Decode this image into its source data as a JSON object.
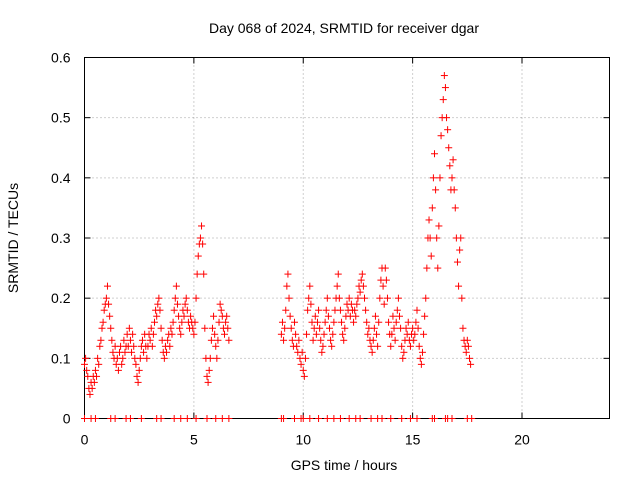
{
  "chart_data": {
    "type": "scatter",
    "title": "Day 068 of 2024, SRMTID for receiver dgar",
    "xlabel": "GPS time / hours",
    "ylabel": "SRMTID / TECUs",
    "xlim": [
      0,
      24
    ],
    "ylim": [
      0,
      0.6
    ],
    "x_ticks": [
      0,
      5,
      10,
      15,
      20
    ],
    "x_tick_labels": [
      "0",
      "5",
      "10",
      "15",
      "20"
    ],
    "y_ticks": [
      0,
      0.1,
      0.2,
      0.3,
      0.4,
      0.5,
      0.6
    ],
    "y_tick_labels": [
      "0",
      "0.1",
      "0.2",
      "0.3",
      "0.4",
      "0.5",
      "0.6"
    ],
    "grid": true,
    "marker": "plus",
    "marker_color": "#ff0000",
    "series": [
      {
        "name": "SRMTID",
        "points": [
          [
            0.0,
            0.09
          ],
          [
            0.05,
            0.1
          ],
          [
            0.1,
            0.08
          ],
          [
            0.15,
            0.07
          ],
          [
            0.2,
            0.05
          ],
          [
            0.25,
            0.04
          ],
          [
            0.3,
            0.06
          ],
          [
            0.35,
            0.05
          ],
          [
            0.4,
            0.07
          ],
          [
            0.45,
            0.06
          ],
          [
            0.5,
            0.08
          ],
          [
            0.55,
            0.07
          ],
          [
            0.6,
            0.1
          ],
          [
            0.65,
            0.09
          ],
          [
            0.7,
            0.12
          ],
          [
            0.75,
            0.13
          ],
          [
            0.8,
            0.15
          ],
          [
            0.85,
            0.16
          ],
          [
            0.9,
            0.18
          ],
          [
            0.95,
            0.19
          ],
          [
            1.0,
            0.2
          ],
          [
            1.05,
            0.22
          ],
          [
            1.1,
            0.19
          ],
          [
            1.15,
            0.17
          ],
          [
            1.2,
            0.15
          ],
          [
            1.25,
            0.13
          ],
          [
            1.3,
            0.11
          ],
          [
            1.35,
            0.1
          ],
          [
            1.4,
            0.12
          ],
          [
            1.45,
            0.09
          ],
          [
            1.5,
            0.1
          ],
          [
            1.55,
            0.08
          ],
          [
            1.6,
            0.11
          ],
          [
            1.65,
            0.12
          ],
          [
            1.7,
            0.09
          ],
          [
            1.75,
            0.1
          ],
          [
            1.8,
            0.13
          ],
          [
            1.85,
            0.11
          ],
          [
            1.9,
            0.12
          ],
          [
            1.95,
            0.14
          ],
          [
            2.0,
            0.12
          ],
          [
            2.05,
            0.15
          ],
          [
            2.1,
            0.13
          ],
          [
            2.15,
            0.11
          ],
          [
            2.2,
            0.14
          ],
          [
            2.25,
            0.12
          ],
          [
            2.3,
            0.1
          ],
          [
            2.35,
            0.09
          ],
          [
            2.4,
            0.07
          ],
          [
            2.45,
            0.06
          ],
          [
            2.5,
            0.08
          ],
          [
            2.55,
            0.1
          ],
          [
            2.6,
            0.12
          ],
          [
            2.65,
            0.13
          ],
          [
            2.7,
            0.11
          ],
          [
            2.75,
            0.14
          ],
          [
            2.8,
            0.12
          ],
          [
            2.85,
            0.1
          ],
          [
            2.9,
            0.12
          ],
          [
            2.95,
            0.14
          ],
          [
            3.0,
            0.13
          ],
          [
            3.05,
            0.15
          ],
          [
            3.1,
            0.12
          ],
          [
            3.15,
            0.14
          ],
          [
            3.2,
            0.16
          ],
          [
            3.25,
            0.18
          ],
          [
            3.3,
            0.17
          ],
          [
            3.35,
            0.19
          ],
          [
            3.4,
            0.2
          ],
          [
            3.45,
            0.18
          ],
          [
            3.5,
            0.15
          ],
          [
            3.55,
            0.13
          ],
          [
            3.6,
            0.11
          ],
          [
            3.65,
            0.1
          ],
          [
            3.7,
            0.12
          ],
          [
            3.75,
            0.11
          ],
          [
            3.8,
            0.13
          ],
          [
            3.85,
            0.14
          ],
          [
            3.9,
            0.12
          ],
          [
            3.95,
            0.15
          ],
          [
            4.0,
            0.14
          ],
          [
            4.05,
            0.16
          ],
          [
            4.1,
            0.18
          ],
          [
            4.15,
            0.2
          ],
          [
            4.2,
            0.22
          ],
          [
            4.25,
            0.19
          ],
          [
            4.3,
            0.17
          ],
          [
            4.35,
            0.15
          ],
          [
            4.4,
            0.14
          ],
          [
            4.45,
            0.16
          ],
          [
            4.5,
            0.18
          ],
          [
            4.55,
            0.17
          ],
          [
            4.6,
            0.19
          ],
          [
            4.65,
            0.2
          ],
          [
            4.7,
            0.18
          ],
          [
            4.75,
            0.16
          ],
          [
            4.8,
            0.15
          ],
          [
            4.85,
            0.17
          ],
          [
            4.9,
            0.16
          ],
          [
            4.95,
            0.15
          ],
          [
            5.0,
            0.14
          ],
          [
            5.05,
            0.16
          ],
          [
            5.1,
            0.2
          ],
          [
            5.15,
            0.24
          ],
          [
            5.2,
            0.27
          ],
          [
            5.25,
            0.29
          ],
          [
            5.3,
            0.3
          ],
          [
            5.35,
            0.32
          ],
          [
            5.4,
            0.29
          ],
          [
            5.45,
            0.24
          ],
          [
            5.5,
            0.15
          ],
          [
            5.55,
            0.1
          ],
          [
            5.6,
            0.07
          ],
          [
            5.65,
            0.06
          ],
          [
            5.7,
            0.08
          ],
          [
            5.75,
            0.1
          ],
          [
            5.8,
            0.13
          ],
          [
            5.85,
            0.15
          ],
          [
            5.9,
            0.17
          ],
          [
            5.95,
            0.14
          ],
          [
            6.0,
            0.12
          ],
          [
            6.05,
            0.1
          ],
          [
            6.1,
            0.13
          ],
          [
            6.15,
            0.16
          ],
          [
            6.2,
            0.19
          ],
          [
            6.25,
            0.18
          ],
          [
            6.3,
            0.17
          ],
          [
            6.35,
            0.15
          ],
          [
            6.4,
            0.14
          ],
          [
            6.45,
            0.16
          ],
          [
            6.5,
            0.17
          ],
          [
            6.55,
            0.15
          ],
          [
            6.6,
            0.13
          ],
          [
            9.0,
            0.14
          ],
          [
            9.05,
            0.16
          ],
          [
            9.1,
            0.13
          ],
          [
            9.15,
            0.15
          ],
          [
            9.2,
            0.18
          ],
          [
            9.25,
            0.22
          ],
          [
            9.3,
            0.24
          ],
          [
            9.35,
            0.2
          ],
          [
            9.4,
            0.17
          ],
          [
            9.45,
            0.15
          ],
          [
            9.5,
            0.13
          ],
          [
            9.55,
            0.12
          ],
          [
            9.6,
            0.16
          ],
          [
            9.65,
            0.14
          ],
          [
            9.7,
            0.12
          ],
          [
            9.75,
            0.11
          ],
          [
            9.8,
            0.13
          ],
          [
            9.85,
            0.1
          ],
          [
            9.9,
            0.09
          ],
          [
            9.95,
            0.11
          ],
          [
            10.0,
            0.08
          ],
          [
            10.05,
            0.07
          ],
          [
            10.1,
            0.1
          ],
          [
            10.15,
            0.14
          ],
          [
            10.2,
            0.18
          ],
          [
            10.25,
            0.2
          ],
          [
            10.3,
            0.22
          ],
          [
            10.35,
            0.19
          ],
          [
            10.4,
            0.16
          ],
          [
            10.45,
            0.13
          ],
          [
            10.5,
            0.15
          ],
          [
            10.55,
            0.17
          ],
          [
            10.6,
            0.14
          ],
          [
            10.65,
            0.16
          ],
          [
            10.7,
            0.18
          ],
          [
            10.75,
            0.15
          ],
          [
            10.8,
            0.13
          ],
          [
            10.85,
            0.11
          ],
          [
            10.9,
            0.12
          ],
          [
            10.95,
            0.14
          ],
          [
            11.0,
            0.16
          ],
          [
            11.05,
            0.18
          ],
          [
            11.1,
            0.2
          ],
          [
            11.15,
            0.17
          ],
          [
            11.2,
            0.15
          ],
          [
            11.25,
            0.13
          ],
          [
            11.3,
            0.12
          ],
          [
            11.35,
            0.14
          ],
          [
            11.4,
            0.16
          ],
          [
            11.45,
            0.18
          ],
          [
            11.5,
            0.2
          ],
          [
            11.55,
            0.22
          ],
          [
            11.6,
            0.24
          ],
          [
            11.65,
            0.2
          ],
          [
            11.7,
            0.18
          ],
          [
            11.75,
            0.16
          ],
          [
            11.8,
            0.14
          ],
          [
            11.85,
            0.13
          ],
          [
            11.9,
            0.15
          ],
          [
            11.95,
            0.17
          ],
          [
            12.0,
            0.19
          ],
          [
            12.05,
            0.18
          ],
          [
            12.1,
            0.2
          ],
          [
            12.15,
            0.17
          ],
          [
            12.2,
            0.19
          ],
          [
            12.25,
            0.18
          ],
          [
            12.3,
            0.16
          ],
          [
            12.35,
            0.18
          ],
          [
            12.4,
            0.17
          ],
          [
            12.45,
            0.19
          ],
          [
            12.5,
            0.2
          ],
          [
            12.55,
            0.22
          ],
          [
            12.6,
            0.21
          ],
          [
            12.65,
            0.23
          ],
          [
            12.7,
            0.24
          ],
          [
            12.75,
            0.22
          ],
          [
            12.8,
            0.2
          ],
          [
            12.85,
            0.18
          ],
          [
            12.9,
            0.16
          ],
          [
            12.95,
            0.14
          ],
          [
            13.0,
            0.15
          ],
          [
            13.05,
            0.13
          ],
          [
            13.1,
            0.12
          ],
          [
            13.15,
            0.11
          ],
          [
            13.2,
            0.13
          ],
          [
            13.25,
            0.15
          ],
          [
            13.3,
            0.17
          ],
          [
            13.35,
            0.14
          ],
          [
            13.4,
            0.12
          ],
          [
            13.45,
            0.16
          ],
          [
            13.5,
            0.2
          ],
          [
            13.55,
            0.23
          ],
          [
            13.6,
            0.25
          ],
          [
            13.65,
            0.22
          ],
          [
            13.7,
            0.19
          ],
          [
            13.75,
            0.25
          ],
          [
            13.8,
            0.23
          ],
          [
            13.85,
            0.2
          ],
          [
            13.9,
            0.16
          ],
          [
            13.95,
            0.14
          ],
          [
            14.0,
            0.12
          ],
          [
            14.05,
            0.14
          ],
          [
            14.1,
            0.17
          ],
          [
            14.15,
            0.15
          ],
          [
            14.2,
            0.13
          ],
          [
            14.25,
            0.16
          ],
          [
            14.3,
            0.18
          ],
          [
            14.35,
            0.2
          ],
          [
            14.4,
            0.17
          ],
          [
            14.45,
            0.15
          ],
          [
            14.5,
            0.12
          ],
          [
            14.55,
            0.1
          ],
          [
            14.6,
            0.11
          ],
          [
            14.65,
            0.13
          ],
          [
            14.7,
            0.15
          ],
          [
            14.75,
            0.14
          ],
          [
            14.8,
            0.16
          ],
          [
            14.85,
            0.13
          ],
          [
            14.9,
            0.12
          ],
          [
            14.95,
            0.14
          ],
          [
            15.0,
            0.15
          ],
          [
            15.05,
            0.13
          ],
          [
            15.1,
            0.14
          ],
          [
            15.15,
            0.16
          ],
          [
            15.2,
            0.18
          ],
          [
            15.25,
            0.15
          ],
          [
            15.3,
            0.12
          ],
          [
            15.35,
            0.1
          ],
          [
            15.4,
            0.09
          ],
          [
            15.45,
            0.11
          ],
          [
            15.5,
            0.14
          ],
          [
            15.55,
            0.17
          ],
          [
            15.6,
            0.2
          ],
          [
            15.65,
            0.25
          ],
          [
            15.7,
            0.3
          ],
          [
            15.75,
            0.33
          ],
          [
            15.8,
            0.3
          ],
          [
            15.85,
            0.27
          ],
          [
            15.9,
            0.35
          ],
          [
            15.95,
            0.4
          ],
          [
            16.0,
            0.44
          ],
          [
            16.05,
            0.38
          ],
          [
            16.1,
            0.3
          ],
          [
            16.15,
            0.25
          ],
          [
            16.2,
            0.32
          ],
          [
            16.25,
            0.4
          ],
          [
            16.3,
            0.47
          ],
          [
            16.35,
            0.5
          ],
          [
            16.4,
            0.53
          ],
          [
            16.45,
            0.57
          ],
          [
            16.5,
            0.55
          ],
          [
            16.55,
            0.5
          ],
          [
            16.6,
            0.48
          ],
          [
            16.65,
            0.45
          ],
          [
            16.7,
            0.42
          ],
          [
            16.75,
            0.38
          ],
          [
            16.8,
            0.4
          ],
          [
            16.85,
            0.43
          ],
          [
            16.9,
            0.38
          ],
          [
            16.95,
            0.35
          ],
          [
            17.0,
            0.3
          ],
          [
            17.05,
            0.26
          ],
          [
            17.1,
            0.22
          ],
          [
            17.15,
            0.28
          ],
          [
            17.2,
            0.3
          ],
          [
            17.25,
            0.2
          ],
          [
            17.3,
            0.15
          ],
          [
            17.35,
            0.13
          ],
          [
            17.4,
            0.12
          ],
          [
            17.45,
            0.11
          ],
          [
            17.5,
            0.13
          ],
          [
            17.55,
            0.12
          ],
          [
            17.6,
            0.1
          ],
          [
            17.65,
            0.09
          ]
        ]
      }
    ],
    "baseline_points": [
      0.0,
      0.3,
      0.5,
      1.2,
      1.4,
      1.9,
      2.1,
      2.6,
      3.3,
      3.5,
      4.1,
      4.4,
      4.7,
      5.1,
      5.6,
      6.0,
      6.3,
      6.6,
      9.0,
      9.1,
      9.6,
      9.9,
      10.0,
      10.3,
      10.7,
      11.1,
      11.4,
      11.7,
      12.1,
      12.4,
      12.6,
      13.1,
      13.4,
      13.6,
      14.0,
      14.5,
      14.9,
      15.2,
      15.9,
      16.0,
      16.5,
      16.6,
      16.8,
      17.5,
      17.7
    ]
  }
}
